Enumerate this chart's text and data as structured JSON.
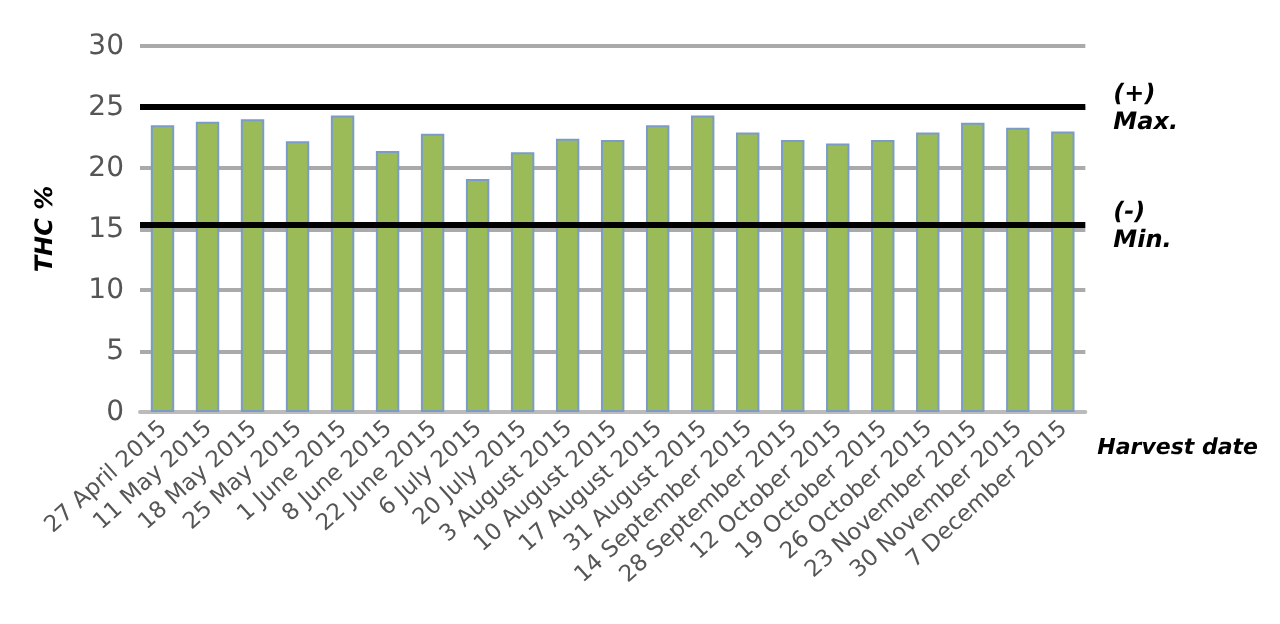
{
  "chart_data": {
    "type": "bar",
    "ylabel": "THC %",
    "xlabel": "Harvest date",
    "categories": [
      "27 April 2015",
      "11 May 2015",
      "18 May 2015",
      "25 May 2015",
      "1 June 2015",
      "8 June 2015",
      "22 June 2015",
      "6 July 2015",
      "20 July 2015",
      "3 August 2015",
      "10 August 2015",
      "17 August 2015",
      "31 August 2015",
      "14 September 2015",
      "28 September 2015",
      "12 October 2015",
      "19 October 2015",
      "26 October 2015",
      "23 November 2015",
      "30 November 2015",
      "7 December 2015"
    ],
    "values": [
      23.5,
      23.8,
      24.0,
      22.2,
      24.3,
      21.4,
      22.8,
      19.1,
      21.3,
      22.4,
      22.3,
      23.5,
      24.3,
      22.9,
      22.3,
      22.0,
      22.3,
      22.9,
      23.7,
      23.3,
      23.0
    ],
    "color": "#9bbb59",
    "ylim": [
      0,
      30
    ],
    "yticks": [
      0,
      5,
      10,
      15,
      20,
      25,
      30
    ],
    "grid": "y",
    "ref_lines": [
      {
        "axis": "y",
        "value": 25,
        "label": "(+)\nMax.",
        "color": "#000000"
      },
      {
        "axis": "y",
        "value": 15.3,
        "label": "(-)\nMin.",
        "color": "#000000"
      }
    ]
  }
}
